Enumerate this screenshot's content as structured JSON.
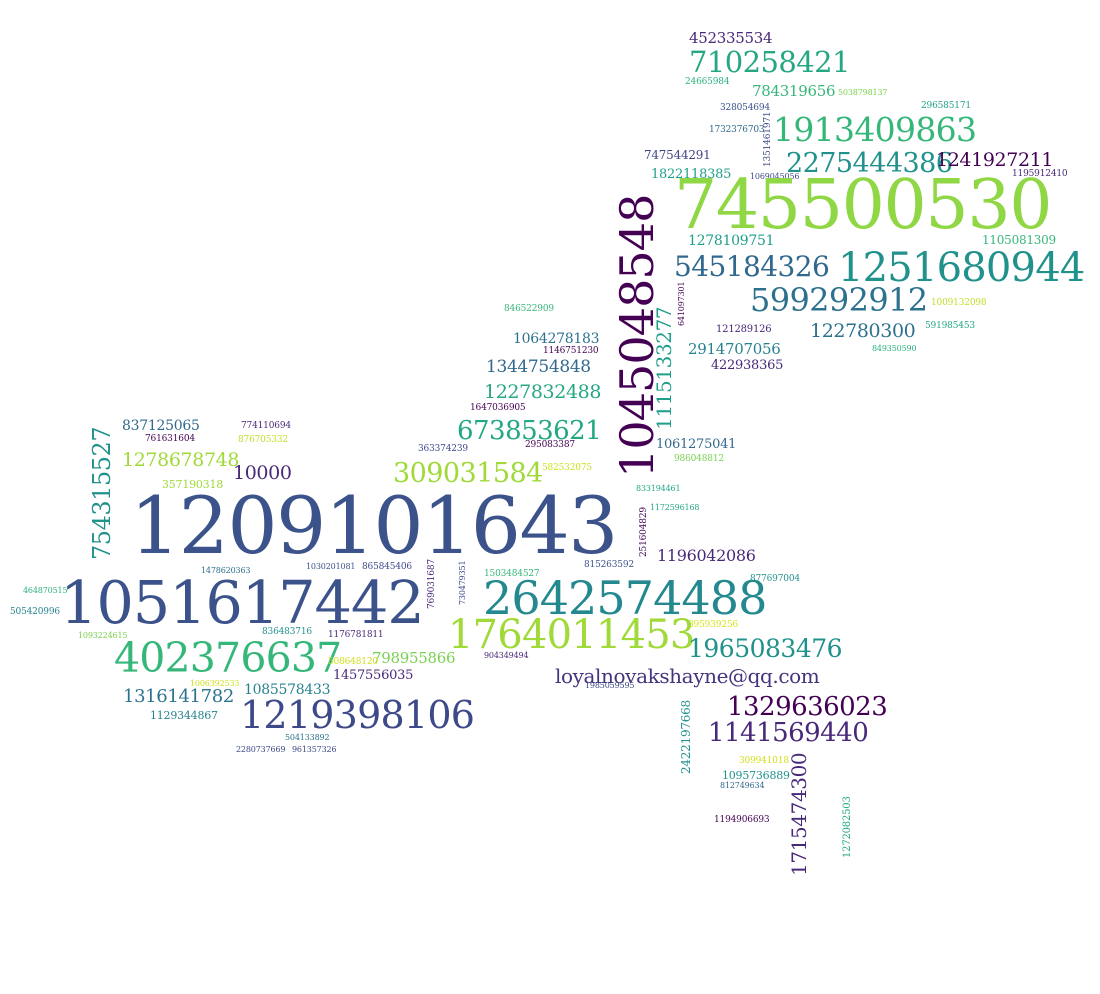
{
  "word_cloud": {
    "words": [
      {
        "text": "452335534",
        "color": "#482878"
      },
      {
        "text": "710258421",
        "color": "#26a784"
      },
      {
        "text": "24665984",
        "color": "#2db27d"
      },
      {
        "text": "784319656",
        "color": "#35b779"
      },
      {
        "text": "5038798137",
        "color": "#7ad151"
      },
      {
        "text": "328054694",
        "color": "#3b528b"
      },
      {
        "text": "296585171",
        "color": "#1f9e89"
      },
      {
        "text": "1732376703",
        "color": "#31688e"
      },
      {
        "text": "1913409863",
        "color": "#35b779"
      },
      {
        "text": "1351461971",
        "color": "#3e4989"
      },
      {
        "text": "747544291",
        "color": "#414487"
      },
      {
        "text": "2275444386",
        "color": "#21918c"
      },
      {
        "text": "1241927211",
        "color": "#440154"
      },
      {
        "text": "1822118385",
        "color": "#1f9e89"
      },
      {
        "text": "1069045056",
        "color": "#3e4989"
      },
      {
        "text": "1195912410",
        "color": "#482878"
      },
      {
        "text": "745500530",
        "color": "#8fd744"
      },
      {
        "text": "1045048548",
        "color": "#440154"
      },
      {
        "text": "1278109751",
        "color": "#1f9e89"
      },
      {
        "text": "1105081309",
        "color": "#35b779"
      },
      {
        "text": "545184326",
        "color": "#31688e"
      },
      {
        "text": "1251680944",
        "color": "#21918c"
      },
      {
        "text": "599292912",
        "color": "#2c728e"
      },
      {
        "text": "1009132098",
        "color": "#bddf26"
      },
      {
        "text": "846522909",
        "color": "#35b779"
      },
      {
        "text": "641097301",
        "color": "#440154"
      },
      {
        "text": "1115133277",
        "color": "#1f9e89"
      },
      {
        "text": "1064278183",
        "color": "#2c728e"
      },
      {
        "text": "1146751230",
        "color": "#440154"
      },
      {
        "text": "121289126",
        "color": "#482878"
      },
      {
        "text": "122780300",
        "color": "#2c728e"
      },
      {
        "text": "591985453",
        "color": "#22a884"
      },
      {
        "text": "849350590",
        "color": "#2db27d"
      },
      {
        "text": "2914707056",
        "color": "#26828e"
      },
      {
        "text": "422938365",
        "color": "#482878"
      },
      {
        "text": "1344754848",
        "color": "#31688e"
      },
      {
        "text": "1227832488",
        "color": "#26a784"
      },
      {
        "text": "1647036905",
        "color": "#440154"
      },
      {
        "text": "673853621",
        "color": "#22a884"
      },
      {
        "text": "837125065",
        "color": "#31688e"
      },
      {
        "text": "774110694",
        "color": "#482878"
      },
      {
        "text": "761631604",
        "color": "#440154"
      },
      {
        "text": "876705332",
        "color": "#bddf26"
      },
      {
        "text": "363374239",
        "color": "#3e4989"
      },
      {
        "text": "295083387",
        "color": "#440154"
      },
      {
        "text": "1061275041",
        "color": "#31688e"
      },
      {
        "text": "986048812",
        "color": "#7ad151"
      },
      {
        "text": "754315527",
        "color": "#21918c"
      },
      {
        "text": "1278678748",
        "color": "#a0da39"
      },
      {
        "text": "10000",
        "color": "#482878"
      },
      {
        "text": "357190318",
        "color": "#a0da39"
      },
      {
        "text": "309031584",
        "color": "#a0da39"
      },
      {
        "text": "582532075",
        "color": "#d0e11c"
      },
      {
        "text": "833194461",
        "color": "#22a884"
      },
      {
        "text": "1172596168",
        "color": "#26a784"
      },
      {
        "text": "1209101643",
        "color": "#3b528b"
      },
      {
        "text": "251604829",
        "color": "#440154"
      },
      {
        "text": "1196042086",
        "color": "#482878"
      },
      {
        "text": "1478620363",
        "color": "#2c728e"
      },
      {
        "text": "1030201081",
        "color": "#3b528b"
      },
      {
        "text": "865845406",
        "color": "#3e4989"
      },
      {
        "text": "769031687",
        "color": "#482878"
      },
      {
        "text": "730479351",
        "color": "#3e4989"
      },
      {
        "text": "1503484527",
        "color": "#35b779"
      },
      {
        "text": "815263592",
        "color": "#3b528b"
      },
      {
        "text": "877697004",
        "color": "#21918c"
      },
      {
        "text": "464870515",
        "color": "#2db27d"
      },
      {
        "text": "505420996",
        "color": "#26828e"
      },
      {
        "text": "1051617442",
        "color": "#3b528b"
      },
      {
        "text": "2642574488",
        "color": "#23898e"
      },
      {
        "text": "1093224615",
        "color": "#7ad151"
      },
      {
        "text": "836483716",
        "color": "#21918c"
      },
      {
        "text": "1176781811",
        "color": "#482878"
      },
      {
        "text": "895939256",
        "color": "#d8e219"
      },
      {
        "text": "1764011453",
        "color": "#a0da39"
      },
      {
        "text": "1965083476",
        "color": "#21918c"
      },
      {
        "text": "402376637",
        "color": "#35b779"
      },
      {
        "text": "798955866",
        "color": "#7ad151"
      },
      {
        "text": "508648120",
        "color": "#d0e11c"
      },
      {
        "text": "904349494",
        "color": "#482878"
      },
      {
        "text": "1006392533",
        "color": "#d0e11c"
      },
      {
        "text": "1457556035",
        "color": "#482878"
      },
      {
        "text": "loyalnovakshayne@qq.com",
        "color": "#46337e"
      },
      {
        "text": "1985059595",
        "color": "#3e4989"
      },
      {
        "text": "1316141782",
        "color": "#2c728e"
      },
      {
        "text": "1085578433",
        "color": "#26828e"
      },
      {
        "text": "1129344867",
        "color": "#26828e"
      },
      {
        "text": "1219398106",
        "color": "#3e4989"
      },
      {
        "text": "504133892",
        "color": "#2c728e"
      },
      {
        "text": "2280737669",
        "color": "#3e4989"
      },
      {
        "text": "961357326",
        "color": "#3e4989"
      },
      {
        "text": "1329636023",
        "color": "#440154"
      },
      {
        "text": "2422197668",
        "color": "#21918c"
      },
      {
        "text": "1141569440",
        "color": "#482878"
      },
      {
        "text": "309941018",
        "color": "#d0e11c"
      },
      {
        "text": "1095736889",
        "color": "#21918c"
      },
      {
        "text": "812749634",
        "color": "#31688e"
      },
      {
        "text": "1715474300",
        "color": "#482878"
      },
      {
        "text": "1194906693",
        "color": "#440154"
      },
      {
        "text": "1272082503",
        "color": "#22a884"
      }
    ]
  }
}
